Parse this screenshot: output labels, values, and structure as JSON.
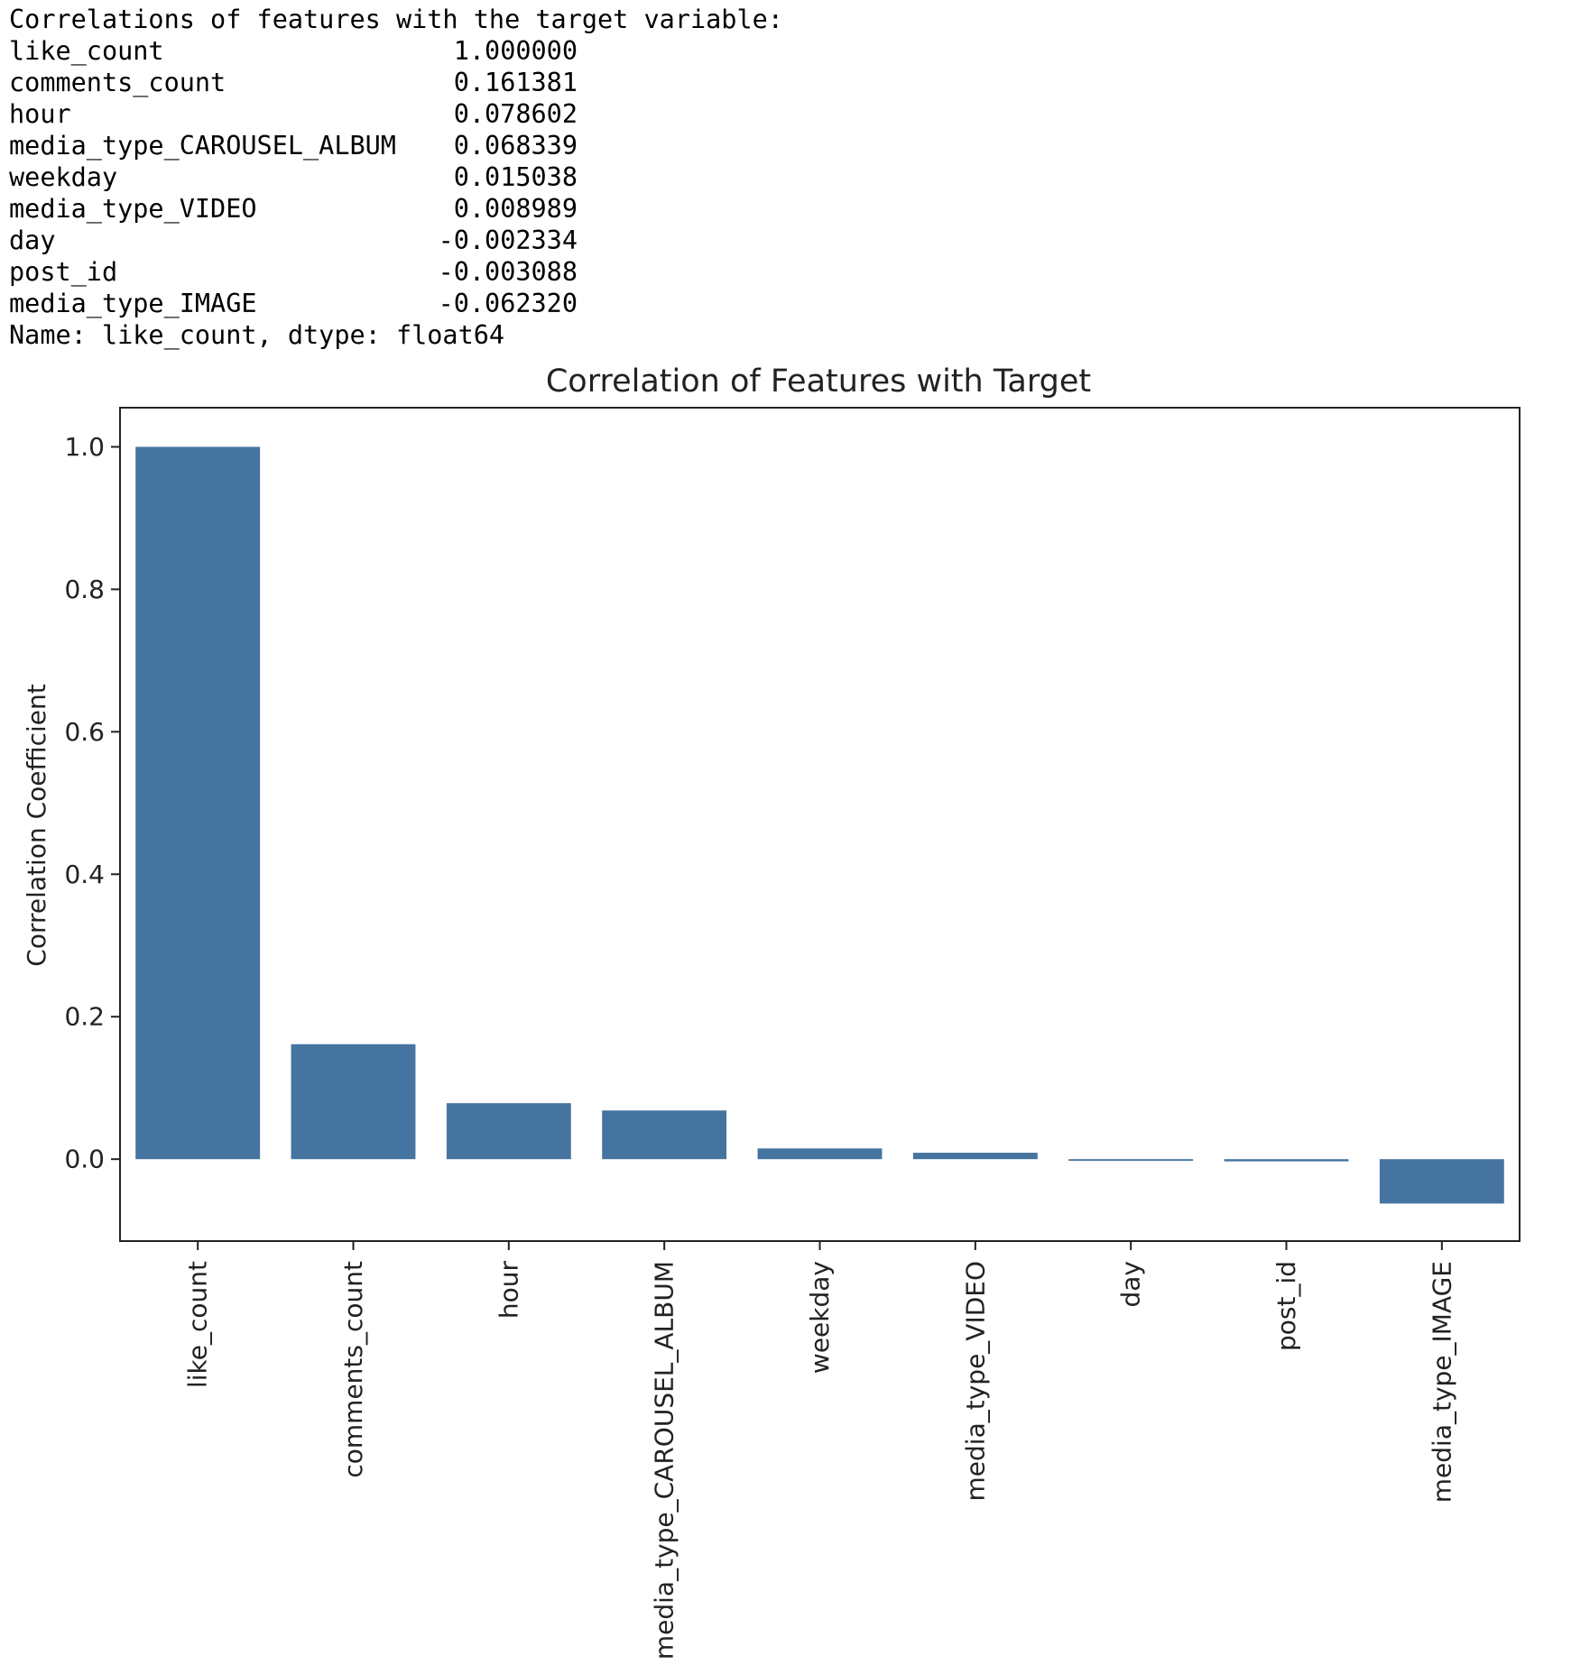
{
  "console": {
    "header": "Correlations of features with the target variable:",
    "rows": [
      {
        "feature": "like_count",
        "value": "1.000000"
      },
      {
        "feature": "comments_count",
        "value": "0.161381"
      },
      {
        "feature": "hour",
        "value": "0.078602"
      },
      {
        "feature": "media_type_CAROUSEL_ALBUM",
        "value": "0.068339"
      },
      {
        "feature": "weekday",
        "value": "0.015038"
      },
      {
        "feature": "media_type_VIDEO",
        "value": "0.008989"
      },
      {
        "feature": "day",
        "value": "-0.002334"
      },
      {
        "feature": "post_id",
        "value": "-0.003088"
      },
      {
        "feature": "media_type_IMAGE",
        "value": "-0.062320"
      }
    ],
    "footer": "Name: like_count, dtype: float64"
  },
  "chart_data": {
    "type": "bar",
    "title": "Correlation of Features with Target",
    "xlabel": "",
    "ylabel": "Correlation Coefficient",
    "categories": [
      "like_count",
      "comments_count",
      "hour",
      "media_type_CAROUSEL_ALBUM",
      "weekday",
      "media_type_VIDEO",
      "day",
      "post_id",
      "media_type_IMAGE"
    ],
    "values": [
      1.0,
      0.161381,
      0.078602,
      0.068339,
      0.015038,
      0.008989,
      -0.002334,
      -0.003088,
      -0.06232
    ],
    "yticks": [
      "0.0",
      "0.2",
      "0.4",
      "0.6",
      "0.8",
      "1.0"
    ],
    "ylim": [
      -0.115,
      1.055
    ],
    "bar_color": "#4674a0",
    "grid": false,
    "legend": "none"
  }
}
